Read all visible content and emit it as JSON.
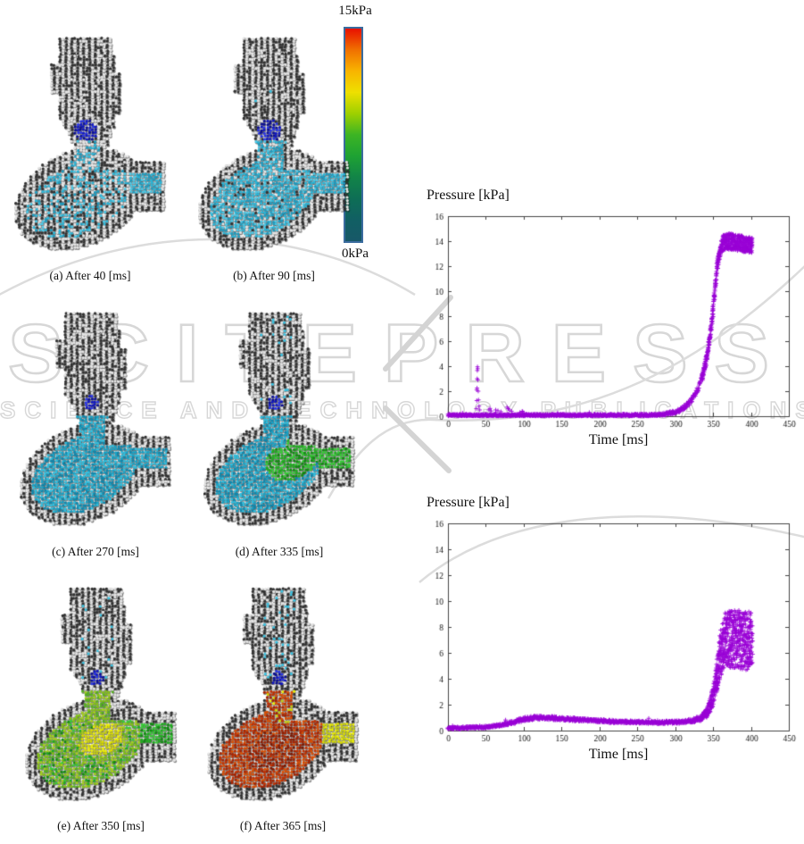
{
  "watermark": {
    "line1": "SCITEPRESS",
    "line2": "SCIENCE AND TECHNOLOGY PUBLICATIONS",
    "color": "#d7d7d7"
  },
  "colorbar": {
    "top_label": "15kPa",
    "bottom_label": "0kPa",
    "border_color": "#3a6b9e",
    "stops": [
      "#e81000",
      "#f07000",
      "#f8b400",
      "#eee000",
      "#9ed000",
      "#3cb424",
      "#1ea233",
      "#128448",
      "#0e6e55",
      "#115f63",
      "#175868"
    ]
  },
  "panels": [
    {
      "id": "a",
      "caption": "(a) After 40 [ms]",
      "state": "sparse",
      "density": 0.38,
      "fluid": "cyan",
      "tube": "cyan",
      "valve": "large",
      "specks": 0
    },
    {
      "id": "b",
      "caption": "(b) After 90 [ms]",
      "state": "sparse",
      "density": 0.85,
      "fluid": "cyan",
      "tube": "cyan",
      "valve": "large",
      "specks": 2
    },
    {
      "id": "c",
      "caption": "(c) After 270 [ms]",
      "state": "full",
      "density": 1,
      "fluid": "teal",
      "tube": "teal",
      "valve": "small",
      "specks": 0
    },
    {
      "id": "d",
      "caption": "(d) After 335 [ms]",
      "state": "full",
      "density": 1,
      "fluid": "teal-green",
      "tube": "green",
      "valve": "small",
      "specks": 12
    },
    {
      "id": "e",
      "caption": "(e) After 350 [ms]",
      "state": "full",
      "density": 1,
      "fluid": "green-yellow",
      "tube": "green-yellow",
      "valve": "small",
      "specks": 18
    },
    {
      "id": "f",
      "caption": "(f) After 365 [ms]",
      "state": "full",
      "density": 1,
      "fluid": "red",
      "tube": "yellow",
      "valve": "small",
      "specks": 42
    }
  ],
  "palette": {
    "gray_light": "#e4e4e4",
    "gray_dark": "#303030",
    "speck": "#38c2e2",
    "blue": [
      "#1016c2",
      "#0a0e93",
      "#2733e6"
    ],
    "cyan": [
      "#2ab6d8",
      "#1d9cc0",
      "#4cc8e6"
    ],
    "teal": [
      "#17a2c6",
      "#0d88ae",
      "#2fbede"
    ],
    "green": [
      "#1fae1f",
      "#36cc36",
      "#108c10"
    ],
    "greenyellow": [
      "#82c213",
      "#55b020",
      "#a4d01c"
    ],
    "yellow": [
      "#d8da00",
      "#c4cc12",
      "#ecee08"
    ],
    "red": [
      "#c23102",
      "#a62300",
      "#d94e04"
    ],
    "darkred": [
      "#8e1c00",
      "#7c1800",
      "#a32403"
    ]
  },
  "chart_data": [
    {
      "type": "scatter",
      "title": "Pressure [kPa]",
      "xlabel": "Time [ms]",
      "marker": "+",
      "color": "#9a00d6",
      "xlim": [
        0,
        450
      ],
      "ylim": [
        0,
        16
      ],
      "xticks": [
        0,
        50,
        100,
        150,
        200,
        250,
        300,
        350,
        400,
        450
      ],
      "yticks": [
        0,
        2,
        4,
        6,
        8,
        10,
        12,
        14,
        16
      ],
      "grid": false,
      "legend": null,
      "trend": [
        [
          0,
          0.08
        ],
        [
          260,
          0.08
        ],
        [
          280,
          0.12
        ],
        [
          295,
          0.25
        ],
        [
          305,
          0.45
        ],
        [
          315,
          0.85
        ],
        [
          323,
          1.4
        ],
        [
          330,
          2.2
        ],
        [
          336,
          3.2
        ],
        [
          342,
          4.8
        ],
        [
          347,
          6.8
        ],
        [
          351,
          9.2
        ],
        [
          355,
          11.8
        ],
        [
          358,
          13.0
        ],
        [
          362,
          13.8
        ],
        [
          368,
          14.0
        ],
        [
          380,
          13.9
        ],
        [
          402,
          13.6
        ]
      ],
      "noise": [
        [
          0,
          0.08
        ],
        [
          280,
          0.1
        ],
        [
          320,
          0.2
        ],
        [
          340,
          0.35
        ],
        [
          350,
          0.45
        ],
        [
          356,
          0.5
        ],
        [
          362,
          0.65
        ],
        [
          402,
          0.65
        ]
      ],
      "spikes": [
        [
          37.5,
          0.6
        ],
        [
          38,
          1.25
        ],
        [
          38,
          2.1
        ],
        [
          38.4,
          2.25
        ],
        [
          38.6,
          3.0
        ],
        [
          38.8,
          3.65
        ],
        [
          39,
          3.95
        ],
        [
          39.3,
          3.8
        ],
        [
          39.5,
          2.9
        ],
        [
          40,
          2.0
        ],
        [
          40.4,
          1.3
        ],
        [
          41,
          0.8
        ],
        [
          42,
          0.5
        ],
        [
          54,
          0.5
        ],
        [
          55.5,
          0.62
        ],
        [
          57,
          0.42
        ],
        [
          63,
          0.5
        ],
        [
          66,
          0.44
        ],
        [
          70,
          0.36
        ],
        [
          78,
          0.72
        ],
        [
          79.5,
          0.6
        ],
        [
          81,
          0.5
        ],
        [
          84,
          0.4
        ],
        [
          95,
          0.3
        ],
        [
          100,
          0.28
        ]
      ]
    },
    {
      "type": "scatter",
      "title": "Pressure [kPa]",
      "xlabel": "Time [ms]",
      "marker": "+",
      "color": "#9a00d6",
      "xlim": [
        0,
        450
      ],
      "ylim": [
        0,
        16
      ],
      "xticks": [
        0,
        50,
        100,
        150,
        200,
        250,
        300,
        350,
        400,
        450
      ],
      "yticks": [
        0,
        2,
        4,
        6,
        8,
        10,
        12,
        14,
        16
      ],
      "grid": false,
      "legend": null,
      "trend": [
        [
          0,
          0.18
        ],
        [
          25,
          0.22
        ],
        [
          50,
          0.28
        ],
        [
          70,
          0.42
        ],
        [
          85,
          0.62
        ],
        [
          100,
          0.88
        ],
        [
          115,
          1.0
        ],
        [
          135,
          0.98
        ],
        [
          160,
          0.88
        ],
        [
          200,
          0.74
        ],
        [
          240,
          0.66
        ],
        [
          280,
          0.62
        ],
        [
          310,
          0.68
        ],
        [
          325,
          0.8
        ],
        [
          335,
          1.0
        ],
        [
          342,
          1.4
        ],
        [
          348,
          2.2
        ],
        [
          352,
          3.2
        ],
        [
          356,
          4.6
        ],
        [
          360,
          6.0
        ],
        [
          365,
          6.9
        ],
        [
          375,
          7.1
        ],
        [
          402,
          6.9
        ]
      ],
      "noise": [
        [
          0,
          0.09
        ],
        [
          60,
          0.1
        ],
        [
          100,
          0.16
        ],
        [
          150,
          0.14
        ],
        [
          250,
          0.1
        ],
        [
          320,
          0.13
        ],
        [
          338,
          0.25
        ],
        [
          346,
          0.5
        ],
        [
          352,
          0.9
        ],
        [
          357,
          1.5
        ],
        [
          362,
          2.2
        ],
        [
          402,
          2.3
        ]
      ],
      "spikes": []
    }
  ]
}
